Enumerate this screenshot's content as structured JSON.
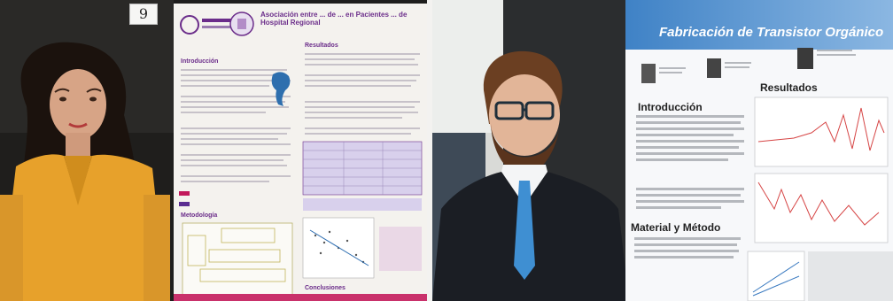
{
  "left_photo": {
    "number_tag": "9",
    "poster": {
      "title": "Asociación entre ... de ... en Pacientes ... de Hospital Regional",
      "sections": [
        "Introducción",
        "Resultados",
        "Metodología",
        "Conclusiones"
      ]
    }
  },
  "right_photo": {
    "poster": {
      "title": "Fabricación de Transistor Orgánico",
      "sections": [
        "Introducción",
        "Resultados",
        "Material y Método"
      ]
    }
  }
}
